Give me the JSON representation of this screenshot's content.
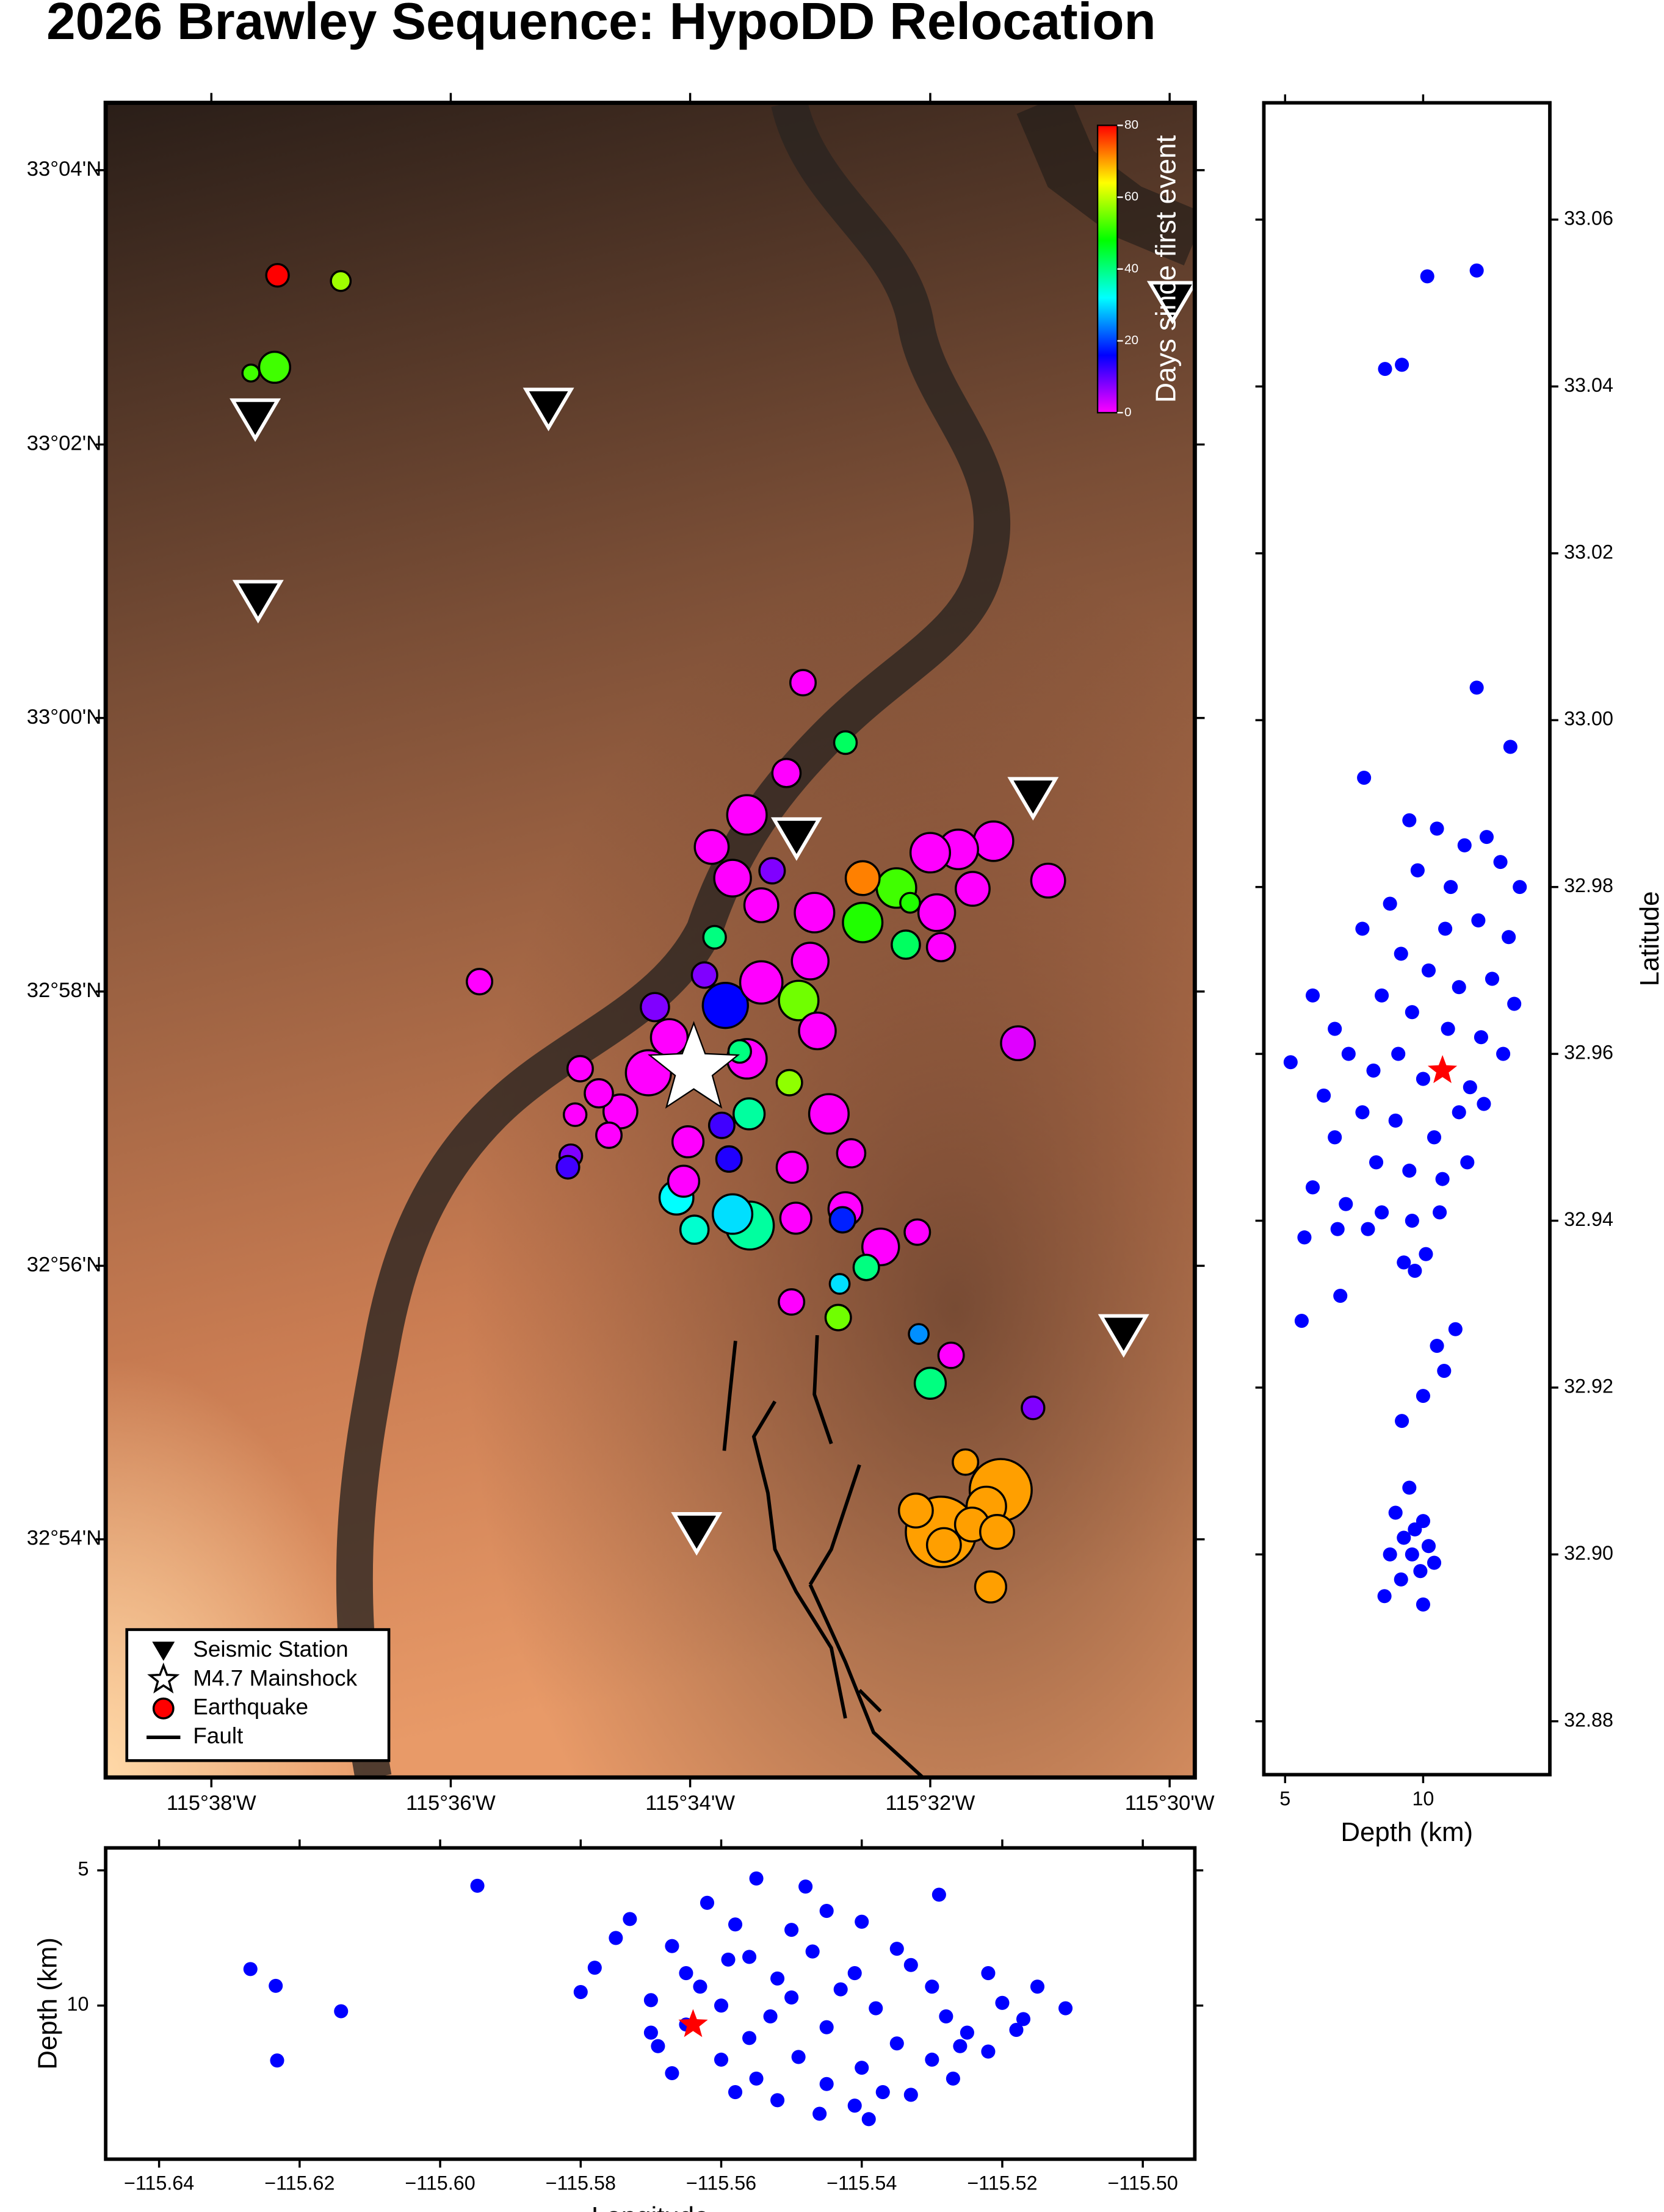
{
  "title": "2026 Brawley Sequence: HypoDD Relocation",
  "chart_data": [
    {
      "type": "map",
      "xlim": [
        -115.648,
        -115.4965
      ],
      "ylim": [
        32.871,
        33.0749
      ],
      "xticks": [
        {
          "value": -115.6333,
          "label": "115°38'W"
        },
        {
          "value": -115.6,
          "label": "115°36'W"
        },
        {
          "value": -115.5667,
          "label": "115°34'W"
        },
        {
          "value": -115.5333,
          "label": "115°32'W"
        },
        {
          "value": -115.5,
          "label": "115°30'W"
        }
      ],
      "yticks": [
        {
          "value": 32.9,
          "label": "32°54'N"
        },
        {
          "value": 32.9333,
          "label": "32°56'N"
        },
        {
          "value": 32.9667,
          "label": "32°58'N"
        },
        {
          "value": 33.0,
          "label": "33°00'N"
        },
        {
          "value": 33.0333,
          "label": "33°02'N"
        },
        {
          "value": 33.0667,
          "label": "33°04'N"
        }
      ],
      "colorbar": {
        "label": "Days since first event",
        "clim": [
          0,
          80
        ],
        "ticks": [
          0,
          20,
          40,
          60,
          80
        ],
        "colors": [
          "#ff00ff",
          "#0000ff",
          "#00ffff",
          "#00ff00",
          "#ffff00",
          "#ff0000"
        ]
      },
      "legend": {
        "corner": "bottom-left",
        "entries": [
          "Seismic Station",
          "M4.7 Mainshock",
          "Earthquake",
          "Fault"
        ]
      },
      "stations": {
        "x": [
          -115.6272,
          -115.5864,
          -115.6268,
          -115.519,
          -115.5519,
          -115.5064,
          -115.5658,
          -115.4996
        ],
        "y": [
          33.0365,
          33.0378,
          33.0144,
          32.9904,
          32.9855,
          32.925,
          32.9009,
          33.0508
        ]
      },
      "mainshock": {
        "x": -115.5662,
        "y": 32.9572
      },
      "earthquakes": {
        "x": [
          -115.6241,
          -115.6153,
          -115.6245,
          -115.6278,
          -115.551,
          -115.5451,
          -115.5533,
          -115.5588,
          -115.5637,
          -115.5608,
          -115.5553,
          -115.5568,
          -115.5427,
          -115.538,
          -115.5427,
          -115.5361,
          -115.5494,
          -115.55,
          -115.5367,
          -115.5318,
          -115.5245,
          -115.5294,
          -115.5333,
          -115.5274,
          -115.5169,
          -115.5324,
          -115.5633,
          -115.5647,
          -115.5618,
          -115.5516,
          -115.5568,
          -115.5716,
          -115.5696,
          -115.5725,
          -115.5588,
          -115.549,
          -115.5529,
          -115.5598,
          -115.582,
          -115.5794,
          -115.5827,
          -115.578,
          -115.5833,
          -115.5837,
          -115.5764,
          -115.567,
          -115.5623,
          -115.5585,
          -115.5474,
          -115.5613,
          -115.5443,
          -115.5676,
          -115.5525,
          -115.5661,
          -115.5686,
          -115.5608,
          -115.5584,
          -115.552,
          -115.5451,
          -115.5455,
          -115.5402,
          -115.5351,
          -115.5422,
          -115.5459,
          -115.5526,
          -115.5461,
          -115.5349,
          -115.5304,
          -115.5333,
          -115.519,
          -115.5284,
          -115.5235,
          -115.5255,
          -115.5318,
          -115.5353,
          -115.5275,
          -115.524,
          -115.5249,
          -115.5314,
          -115.5211,
          -115.596
        ],
        "y": [
          33.0539,
          33.0532,
          33.0427,
          33.042,
          33.0043,
          32.997,
          32.9933,
          32.9882,
          32.9843,
          32.9805,
          32.9814,
          32.9772,
          32.9805,
          32.9793,
          32.9751,
          32.9775,
          32.9763,
          32.9704,
          32.9724,
          32.9721,
          32.985,
          32.984,
          32.9836,
          32.9792,
          32.9802,
          32.9763,
          32.9733,
          32.9687,
          32.965,
          32.9656,
          32.9678,
          32.9648,
          32.9611,
          32.9568,
          32.9585,
          32.9619,
          32.9556,
          32.9594,
          32.9573,
          32.9543,
          32.9517,
          32.9492,
          32.9467,
          32.9453,
          32.9521,
          32.9484,
          32.9504,
          32.9518,
          32.9518,
          32.9463,
          32.947,
          32.9436,
          32.9453,
          32.9377,
          32.9416,
          32.9396,
          32.9382,
          32.9391,
          32.9402,
          32.9389,
          32.9356,
          32.9374,
          32.9331,
          32.9311,
          32.9289,
          32.927,
          32.925,
          32.9224,
          32.919,
          32.916,
          32.9094,
          32.906,
          32.904,
          32.9009,
          32.9035,
          32.9018,
          32.9009,
          32.8942,
          32.8993,
          32.9604,
          32.9679
        ],
        "days": [
          80,
          58,
          52,
          52,
          0,
          42,
          0,
          0,
          0,
          0,
          8,
          0,
          72,
          52,
          50,
          50,
          0,
          0,
          42,
          0,
          0,
          0,
          0,
          0,
          0,
          0,
          40,
          8,
          16,
          55,
          0,
          8,
          0,
          0,
          0,
          0,
          57,
          40,
          0,
          0,
          0,
          0,
          8,
          12,
          0,
          0,
          12,
          38,
          0,
          14,
          0,
          0,
          0,
          35,
          32,
          30,
          38,
          0,
          0,
          18,
          0,
          0,
          40,
          30,
          0,
          55,
          25,
          0,
          40,
          8,
          70,
          70,
          70,
          70,
          70,
          70,
          70,
          70,
          70,
          2,
          0
        ],
        "magnitudes": [
          1.2,
          1.0,
          1.8,
          0.8,
          1.4,
          1.2,
          1.6,
          2.4,
          2.0,
          2.2,
          1.4,
          2.0,
          2.0,
          2.4,
          2.4,
          1.0,
          2.4,
          2.2,
          1.6,
          1.6,
          2.4,
          2.4,
          2.4,
          2.0,
          2.0,
          2.2,
          1.2,
          1.4,
          2.8,
          2.4,
          2.6,
          1.6,
          2.2,
          2.8,
          2.4,
          2.2,
          1.4,
          1.2,
          1.4,
          1.6,
          1.2,
          1.4,
          1.2,
          1.2,
          2.0,
          1.8,
          1.4,
          1.8,
          2.4,
          1.4,
          1.6,
          1.8,
          1.8,
          1.6,
          2.0,
          2.4,
          3.0,
          1.8,
          2.0,
          1.4,
          2.2,
          1.4,
          1.4,
          1.0,
          1.4,
          1.4,
          1.0,
          1.4,
          1.8,
          1.2,
          1.4,
          4.0,
          2.4,
          4.6,
          2.0,
          2.0,
          2.0,
          1.8,
          2.0,
          2.0,
          1.4
        ]
      }
    },
    {
      "type": "scatter",
      "xlabel": "Depth (km)",
      "ylabel": "Latitude",
      "xlim": [
        4.23,
        14.59
      ],
      "ylim": [
        32.8736,
        33.074
      ],
      "xticks": [
        5,
        10
      ],
      "yticks": [
        32.88,
        {
          "value": 32.9,
          "label": "32.90"
        },
        32.92,
        32.94,
        32.96,
        32.98,
        {
          "value": 33.0,
          "label": "33.00"
        },
        33.02,
        33.04,
        33.06
      ],
      "color": "#0000ff",
      "mainshock": {
        "x": 10.7,
        "y": 32.958,
        "color": "#ff0000"
      },
      "x": [
        10.15,
        11.94,
        8.62,
        9.23,
        11.94,
        13.16,
        7.86,
        9.5,
        10.5,
        11.5,
        12.3,
        12.8,
        13.5,
        11,
        9.8,
        8.8,
        10.8,
        12.0,
        13.1,
        7.8,
        9.2,
        10.2,
        11.3,
        12.5,
        13.3,
        8.5,
        6.0,
        6.8,
        9.6,
        10.9,
        12.1,
        12.9,
        5.2,
        7.3,
        8.2,
        9.1,
        10.0,
        11.7,
        6.4,
        7.8,
        9.0,
        10.4,
        11.3,
        12.2,
        6.8,
        8.3,
        9.5,
        10.7,
        11.6,
        6.0,
        7.2,
        8.5,
        9.6,
        10.6,
        5.7,
        6.9,
        8.0,
        9.3,
        9.7,
        10.1,
        7.0,
        5.6,
        11.17,
        10.5,
        10.0,
        9.23,
        10.76,
        9.5,
        9.0,
        10.0,
        9.3,
        10.2,
        9.6,
        8.8,
        10.4,
        9.2,
        9.9,
        9.7,
        8.6,
        10.0
      ],
      "y": [
        33.0532,
        33.0539,
        33.0421,
        33.0426,
        33.0039,
        32.9968,
        32.9931,
        32.988,
        32.987,
        32.985,
        32.986,
        32.983,
        32.98,
        32.98,
        32.982,
        32.978,
        32.975,
        32.976,
        32.974,
        32.975,
        32.972,
        32.97,
        32.968,
        32.969,
        32.966,
        32.967,
        32.967,
        32.963,
        32.965,
        32.963,
        32.962,
        32.96,
        32.959,
        32.96,
        32.958,
        32.96,
        32.957,
        32.956,
        32.955,
        32.953,
        32.952,
        32.95,
        32.953,
        32.954,
        32.95,
        32.947,
        32.946,
        32.945,
        32.947,
        32.944,
        32.942,
        32.941,
        32.94,
        32.941,
        32.938,
        32.939,
        32.939,
        32.935,
        32.934,
        32.936,
        32.931,
        32.928,
        32.927,
        32.925,
        32.919,
        32.916,
        32.922,
        32.908,
        32.905,
        32.904,
        32.902,
        32.901,
        32.9,
        32.9,
        32.899,
        32.897,
        32.898,
        32.903,
        32.895,
        32.894
      ]
    },
    {
      "type": "scatter",
      "xlabel": "Longitude",
      "ylabel": "Depth (km)",
      "xlim": [
        -115.6476,
        -115.4926
      ],
      "ylim": [
        4.17,
        15.68
      ],
      "y_inverted": true,
      "xticks": [
        {
          "value": -115.64,
          "label": "−115.64"
        },
        {
          "value": -115.62,
          "label": "−115.62"
        },
        {
          "value": -115.6,
          "label": "−115.60"
        },
        {
          "value": -115.58,
          "label": "−115.58"
        },
        {
          "value": -115.56,
          "label": "−115.56"
        },
        {
          "value": -115.54,
          "label": "−115.54"
        },
        {
          "value": -115.52,
          "label": "−115.52"
        },
        {
          "value": -115.5,
          "label": "−115.50"
        }
      ],
      "yticks": [
        5,
        10
      ],
      "color": "#0000ff",
      "mainshock": {
        "x": -115.564,
        "y": 10.7,
        "color": "#ff0000"
      },
      "x": [
        -115.5947,
        -115.627,
        -115.6234,
        -115.6141,
        -115.6232,
        -115.555,
        -115.548,
        -115.529,
        -115.562,
        -115.545,
        -115.558,
        -115.55,
        -115.54,
        -115.575,
        -115.567,
        -115.556,
        -115.547,
        -115.535,
        -115.578,
        -115.565,
        -115.552,
        -115.541,
        -115.53,
        -115.522,
        -115.515,
        -115.58,
        -115.57,
        -115.56,
        -115.55,
        -115.538,
        -115.528,
        -115.52,
        -115.511,
        -115.565,
        -115.556,
        -115.545,
        -115.535,
        -115.525,
        -115.518,
        -115.569,
        -115.56,
        -115.549,
        -115.54,
        -115.53,
        -115.522,
        -115.567,
        -115.555,
        -115.545,
        -115.537,
        -115.527,
        -115.552,
        -115.541,
        -115.533,
        -115.558,
        -115.546,
        -115.539,
        -115.573,
        -115.563,
        -115.553,
        -115.543,
        -115.533,
        -115.517,
        -115.526,
        -115.559,
        -115.57
      ],
      "y": [
        5.57,
        8.65,
        9.27,
        10.21,
        12.03,
        5.3,
        5.6,
        5.9,
        6.2,
        6.5,
        7.0,
        7.2,
        6.9,
        7.5,
        7.8,
        8.2,
        8.0,
        7.9,
        8.6,
        8.8,
        9.0,
        8.8,
        9.3,
        8.8,
        9.3,
        9.5,
        9.8,
        10.0,
        9.7,
        10.1,
        10.4,
        9.9,
        10.1,
        10.7,
        11.2,
        10.8,
        11.4,
        11.0,
        10.9,
        11.5,
        12.0,
        11.9,
        12.3,
        12.0,
        11.7,
        12.5,
        12.7,
        12.9,
        13.2,
        12.7,
        13.5,
        13.7,
        13.3,
        13.2,
        14.0,
        14.2,
        6.8,
        9.3,
        10.4,
        9.4,
        8.5,
        10.5,
        11.5,
        8.3,
        11.0
      ]
    }
  ]
}
